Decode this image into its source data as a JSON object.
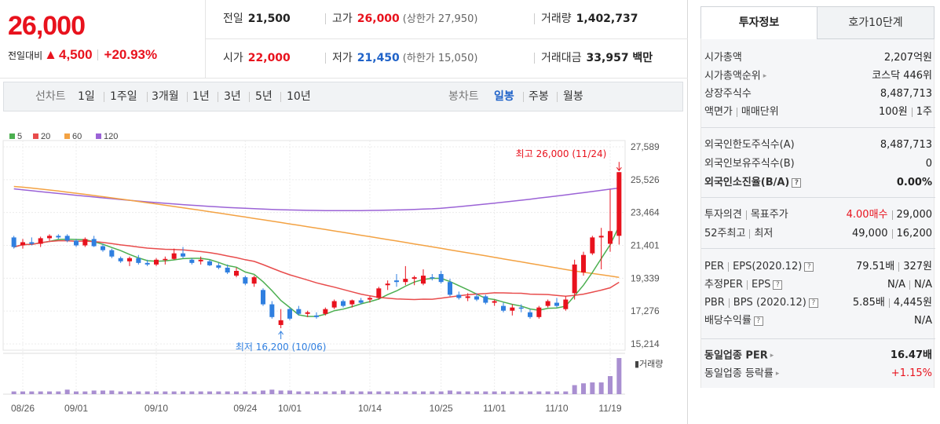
{
  "header": {
    "price": "26,000",
    "change_label": "전일대비",
    "change_arrow": "▲",
    "change_amount": "4,500",
    "change_pct": "+20.93%",
    "prev_label": "전일",
    "prev_value": "21,500",
    "high_label": "고가",
    "high_value": "26,000",
    "upper_limit": "(상한가 27,950)",
    "volume_label": "거래량",
    "volume_value": "1,402,737",
    "open_label": "시가",
    "open_value": "22,000",
    "low_label": "저가",
    "low_value": "21,450",
    "lower_limit": "(하한가 15,050)",
    "amount_label": "거래대금",
    "amount_value": "33,957 백만"
  },
  "period_bar": {
    "line_chart_label": "선차트",
    "periods": [
      "1일",
      "1주일",
      "3개월",
      "1년",
      "3년",
      "5년",
      "10년"
    ],
    "candle_label": "봉차트",
    "candle_types": [
      "일봉",
      "주봉",
      "월봉"
    ],
    "active_candle": "일봉"
  },
  "chart_data": {
    "type": "candlestick",
    "legend": [
      {
        "name": "5",
        "color": "#4caf50"
      },
      {
        "name": "20",
        "color": "#e84c4c"
      },
      {
        "name": "60",
        "color": "#f3a243"
      },
      {
        "name": "120",
        "color": "#9b63d6"
      }
    ],
    "y_ticks": [
      "27,589",
      "25,526",
      "23,464",
      "21,401",
      "19,339",
      "17,276",
      "15,214"
    ],
    "ylim": [
      15214,
      27589
    ],
    "x_ticks": [
      "08/26",
      "09/01",
      "09/10",
      "09/24",
      "10/01",
      "10/14",
      "10/25",
      "11/01",
      "11/10",
      "11/19"
    ],
    "high_annotation": "최고 26,000 (11/24)",
    "low_annotation": "최저 16,200 (10/06)",
    "volume_label": "거래량",
    "candles": [
      [
        21900,
        22000,
        21200,
        21300
      ],
      [
        21400,
        21800,
        21200,
        21600
      ],
      [
        21600,
        21900,
        21400,
        21500
      ],
      [
        21500,
        21950,
        21300,
        21850
      ],
      [
        21850,
        22100,
        21700,
        22000
      ],
      [
        22000,
        22100,
        21800,
        21900
      ],
      [
        22000,
        22100,
        21600,
        21700
      ],
      [
        21700,
        21800,
        21300,
        21400
      ],
      [
        21400,
        21900,
        21300,
        21800
      ],
      [
        21800,
        22000,
        21300,
        21350
      ],
      [
        21350,
        21500,
        21000,
        21100
      ],
      [
        21100,
        21200,
        20600,
        20700
      ],
      [
        20600,
        20700,
        20300,
        20400
      ],
      [
        20400,
        20700,
        20100,
        20600
      ],
      [
        20600,
        20800,
        20200,
        20300
      ],
      [
        20300,
        20500,
        20100,
        20200
      ],
      [
        20200,
        20600,
        20100,
        20500
      ],
      [
        20500,
        20700,
        20200,
        20550
      ],
      [
        20550,
        21200,
        20500,
        20900
      ],
      [
        20900,
        21300,
        20600,
        20700
      ],
      [
        20500,
        20600,
        20200,
        20300
      ],
      [
        20400,
        20700,
        20200,
        20500
      ],
      [
        20400,
        20500,
        20100,
        20150
      ],
      [
        20150,
        20300,
        19900,
        20000
      ],
      [
        20000,
        20200,
        19600,
        19700
      ],
      [
        19500,
        20000,
        19400,
        19800
      ],
      [
        19400,
        19500,
        18900,
        19000
      ],
      [
        19000,
        19500,
        18800,
        19400
      ],
      [
        18600,
        18700,
        17600,
        17700
      ],
      [
        17700,
        17900,
        16800,
        16900
      ],
      [
        16400,
        17400,
        16200,
        16700
      ],
      [
        17400,
        17500,
        16700,
        16800
      ],
      [
        17400,
        17600,
        17000,
        17100
      ],
      [
        17100,
        17300,
        16900,
        17200
      ],
      [
        17000,
        17200,
        16800,
        16900
      ],
      [
        17100,
        17500,
        17000,
        17400
      ],
      [
        17500,
        18000,
        17400,
        17900
      ],
      [
        17900,
        18000,
        17500,
        17600
      ],
      [
        17700,
        18000,
        17500,
        17950
      ],
      [
        17950,
        18100,
        17700,
        17800
      ],
      [
        18000,
        18200,
        17800,
        18100
      ],
      [
        18100,
        18800,
        18000,
        18700
      ],
      [
        18900,
        19200,
        18600,
        19000
      ],
      [
        19200,
        19600,
        18800,
        19100
      ],
      [
        19100,
        20100,
        18900,
        19300
      ],
      [
        19300,
        19500,
        18900,
        19400
      ],
      [
        19000,
        19900,
        18900,
        19500
      ],
      [
        19400,
        19600,
        19200,
        19350
      ],
      [
        19600,
        19800,
        19000,
        19100
      ],
      [
        19100,
        19300,
        18200,
        18300
      ],
      [
        18300,
        18500,
        18000,
        18100
      ],
      [
        18100,
        18400,
        17900,
        18200
      ],
      [
        18200,
        18400,
        17900,
        18000
      ],
      [
        18200,
        18300,
        17700,
        17800
      ],
      [
        17800,
        18000,
        17600,
        17900
      ],
      [
        17600,
        17800,
        17200,
        17300
      ],
      [
        17300,
        17700,
        17000,
        17500
      ],
      [
        17500,
        17700,
        17200,
        17450
      ],
      [
        17200,
        17400,
        16800,
        16900
      ],
      [
        16900,
        17600,
        16800,
        17500
      ],
      [
        17600,
        18000,
        17500,
        17900
      ],
      [
        17800,
        18100,
        17500,
        17600
      ],
      [
        17400,
        18200,
        17300,
        18000
      ],
      [
        18400,
        20500,
        18000,
        20200
      ],
      [
        19700,
        21000,
        19500,
        20800
      ],
      [
        20900,
        22000,
        20800,
        21900
      ],
      [
        21900,
        22500,
        19900,
        22000
      ],
      [
        21500,
        24900,
        21000,
        22300
      ],
      [
        22000,
        26000,
        21450,
        26000
      ]
    ],
    "volumes": [
      3,
      3,
      3,
      3,
      3,
      3,
      5,
      3,
      3,
      4,
      4,
      4,
      3,
      3,
      3,
      3,
      3,
      3,
      3,
      3,
      3,
      3,
      3,
      3,
      3,
      3,
      3,
      3,
      4,
      5,
      4,
      4,
      3,
      3,
      3,
      3,
      3,
      4,
      3,
      3,
      3,
      3,
      3,
      3,
      3,
      3,
      3,
      3,
      3,
      4,
      3,
      3,
      3,
      3,
      3,
      3,
      3,
      3,
      3,
      3,
      3,
      3,
      3,
      10,
      12,
      13,
      13,
      20,
      40
    ]
  },
  "tabs": {
    "info": "투자정보",
    "orderbook": "호가10단계"
  },
  "invest": {
    "market_cap_label": "시가총액",
    "market_cap_value": "2,207억원",
    "rank_label": "시가총액순위",
    "rank_value": "코스닥 446위",
    "shares_label": "상장주식수",
    "shares_value": "8,487,713",
    "par_label": "액면가",
    "unit_label": "매매단위",
    "par_value": "100원",
    "unit_value": "1주",
    "foreign_limit_label": "외국인한도주식수(A)",
    "foreign_limit_value": "8,487,713",
    "foreign_hold_label": "외국인보유주식수(B)",
    "foreign_hold_value": "0",
    "foreign_ratio_label": "외국인소진율(B/A)",
    "foreign_ratio_value": "0.00%",
    "opinion_label": "투자의견",
    "target_label": "목표주가",
    "opinion_value": "4.00매수",
    "target_value": "29,000",
    "w52_high_label": "52주최고",
    "w52_low_label": "최저",
    "w52_high_value": "49,000",
    "w52_low_value": "16,200",
    "per_label": "PER",
    "eps_label": "EPS(2020.12)",
    "per_value": "79.51배",
    "eps_value": "327원",
    "fper_label": "추정PER",
    "feps_label": "EPS",
    "fper_value": "N/A",
    "feps_value": "N/A",
    "pbr_label": "PBR",
    "bps_label": "BPS (2020.12)",
    "pbr_value": "5.85배",
    "bps_value": "4,445원",
    "div_label": "배당수익률",
    "div_value": "N/A",
    "sector_per_label": "동일업종 PER",
    "sector_per_value": "16.47배",
    "sector_rate_label": "동일업종 등락률",
    "sector_rate_value": "+1.15%"
  }
}
